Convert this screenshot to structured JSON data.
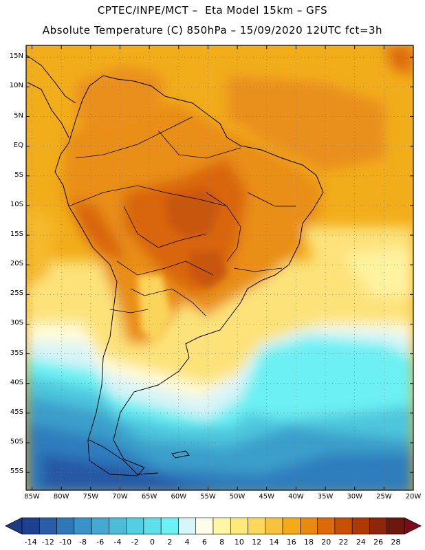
{
  "header": {
    "line1": "CPTEC/INPE/MCT –  Eta Model 15km – GFS",
    "line2": "Absolute Temperature (C) 850hPa – 15/09/2020 12UTC fct=3h"
  },
  "map": {
    "lon_range": [
      -86,
      -20
    ],
    "lat_range": [
      -58,
      17
    ],
    "lat_labels": [
      "15N",
      "10N",
      "5N",
      "EQ",
      "5S",
      "10S",
      "15S",
      "20S",
      "25S",
      "30S",
      "35S",
      "40S",
      "45S",
      "50S",
      "55S"
    ],
    "lat_values": [
      15,
      10,
      5,
      0,
      -5,
      -10,
      -15,
      -20,
      -25,
      -30,
      -35,
      -40,
      -45,
      -50,
      -55
    ],
    "lon_labels": [
      "85W",
      "80W",
      "75W",
      "70W",
      "65W",
      "60W",
      "55W",
      "50W",
      "45W",
      "40W",
      "35W",
      "30W",
      "25W",
      "20W"
    ],
    "lon_values": [
      -85,
      -80,
      -75,
      -70,
      -65,
      -60,
      -55,
      -50,
      -45,
      -40,
      -35,
      -30,
      -25,
      -20
    ],
    "grid": "dotted"
  },
  "colorbar": {
    "labels": [
      "-14",
      "-12",
      "-10",
      "-8",
      "-6",
      "-4",
      "-2",
      "0",
      "2",
      "4",
      "6",
      "8",
      "10",
      "12",
      "14",
      "16",
      "18",
      "20",
      "22",
      "24",
      "26",
      "28"
    ],
    "colors": [
      "#1f3f8f",
      "#2a5da8",
      "#2f78b8",
      "#3a93c8",
      "#45a8d0",
      "#4bbdd8",
      "#52cfe0",
      "#5ee0ea",
      "#6cf2f5",
      "#d6f6f8",
      "#fffde8",
      "#fff7a6",
      "#ffe97a",
      "#fdd85c",
      "#f7c23c",
      "#f3ac18",
      "#e88a10",
      "#dd6a08",
      "#c85006",
      "#ad3a06",
      "#8e2609",
      "#6e170d"
    ],
    "under_color": "#1f3b85",
    "over_color": "#7a0c1a"
  }
}
